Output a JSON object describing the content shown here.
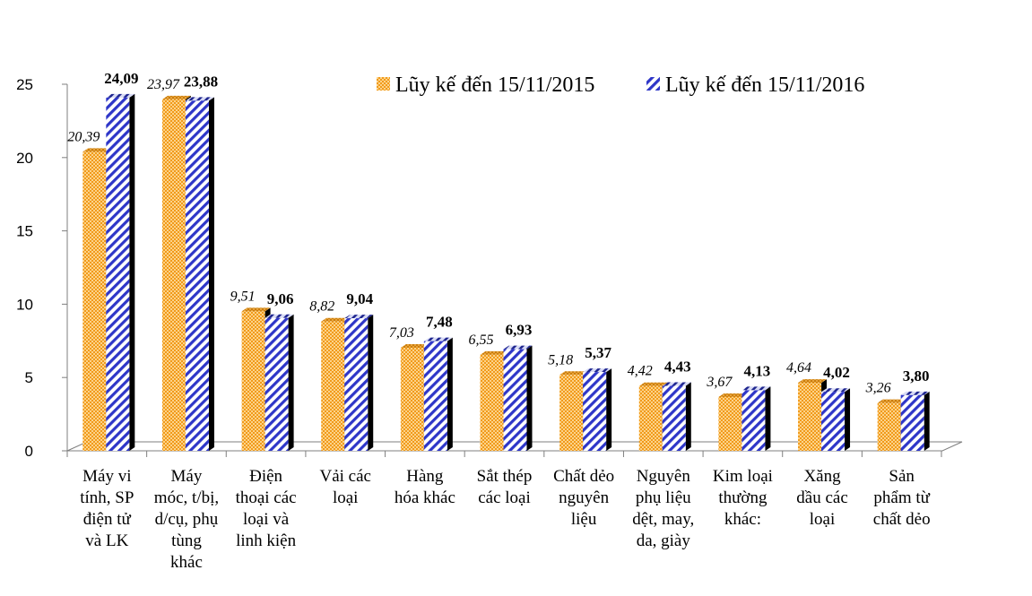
{
  "chart_data": {
    "type": "bar",
    "categories": [
      "Máy vi tính, SP điện tử và LK",
      "Máy móc, t/bị, d/cụ, phụ tùng khác",
      "Điện thoại các loại và linh kiện",
      "Vải các loại",
      "Hàng hóa khác",
      "Sắt thép các loại",
      "Chất dẻo nguyên liệu",
      "Nguyên phụ liệu dệt, may, da, giày",
      "Kim loại thường khác:",
      "Xăng dầu các loại",
      "Sản phẩm từ chất dẻo"
    ],
    "category_lines": [
      [
        "Máy vi",
        "tính, SP",
        "điện tử",
        "và LK"
      ],
      [
        "Máy",
        "móc, t/bị,",
        "d/cụ, phụ",
        "tùng",
        "khác"
      ],
      [
        "Điện",
        "thoại các",
        "loại và",
        "linh kiện"
      ],
      [
        "Vải các",
        "loại"
      ],
      [
        "Hàng",
        "hóa khác"
      ],
      [
        "Sắt thép",
        "các loại"
      ],
      [
        "Chất dẻo",
        "nguyên",
        "liệu"
      ],
      [
        "Nguyên",
        "phụ liệu",
        "dệt, may,",
        "da, giày"
      ],
      [
        "Kim loại",
        "thường",
        "khác:"
      ],
      [
        "Xăng",
        "dầu các",
        "loại"
      ],
      [
        "Sản",
        "phẩm từ",
        "chất dẻo"
      ]
    ],
    "series": [
      {
        "name": "Lũy kế đến 15/11/2015",
        "values": [
          20.39,
          23.97,
          9.51,
          8.82,
          7.03,
          6.55,
          5.18,
          4.42,
          3.67,
          4.64,
          3.26
        ],
        "labels": [
          "20,39",
          "23,97",
          "9,51",
          "8,82",
          "7,03",
          "6,55",
          "5,18",
          "4,42",
          "3,67",
          "4,64",
          "3,26"
        ],
        "color": "#F5A623",
        "pattern": "dotted"
      },
      {
        "name": "Lũy kế đến 15/11/2016",
        "values": [
          24.09,
          23.88,
          9.06,
          9.04,
          7.48,
          6.93,
          5.37,
          4.43,
          4.13,
          4.02,
          3.8
        ],
        "labels": [
          "24,09",
          "23,88",
          "9,06",
          "9,04",
          "7,48",
          "6,93",
          "5,37",
          "4,43",
          "4,13",
          "4,02",
          "3,80"
        ],
        "color": "#2E36C8",
        "pattern": "diagonal-stripes"
      }
    ],
    "yticks": [
      "0",
      "5",
      "10",
      "15",
      "20",
      "25"
    ],
    "ylim": [
      0,
      25
    ],
    "title": "",
    "xlabel": "",
    "ylabel": "",
    "grid": false,
    "legend_position": "top-right",
    "style": "3d-bars"
  }
}
